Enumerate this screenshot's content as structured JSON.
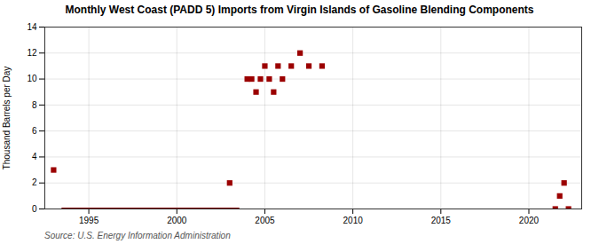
{
  "chart_data": {
    "type": "scatter",
    "title": "Monthly West Coast (PADD 5) Imports from Virgin Islands of Gasoline Blending Components",
    "ylabel": "Thousand Barrels per Day",
    "source": "Source: U.S. Energy Information Administration",
    "xlim": [
      1992.5,
      2023.0
    ],
    "ylim": [
      0,
      14
    ],
    "xticks": [
      1995,
      2000,
      2005,
      2010,
      2015,
      2020
    ],
    "yticks": [
      0,
      2,
      4,
      6,
      8,
      10,
      12,
      14
    ],
    "grid": true,
    "series": [
      {
        "type": "line",
        "color": "#7b0000",
        "line_style": "solid",
        "x": [
          1993.5,
          2003.5
        ],
        "values": [
          0,
          0
        ]
      },
      {
        "type": "scatter",
        "color": "#9b0000",
        "marker": "square",
        "x": [
          1993.0,
          2003.0,
          2004.0,
          2004.25,
          2004.5,
          2004.75,
          2005.0,
          2005.25,
          2005.5,
          2005.75,
          2006.0,
          2006.5,
          2007.0,
          2007.5,
          2008.25,
          2021.5,
          2021.75,
          2022.0,
          2022.25
        ],
        "values": [
          3,
          2,
          10,
          10,
          9,
          10,
          11,
          10,
          9,
          11,
          10,
          11,
          12,
          11,
          11,
          0,
          1,
          2,
          0
        ]
      }
    ]
  }
}
